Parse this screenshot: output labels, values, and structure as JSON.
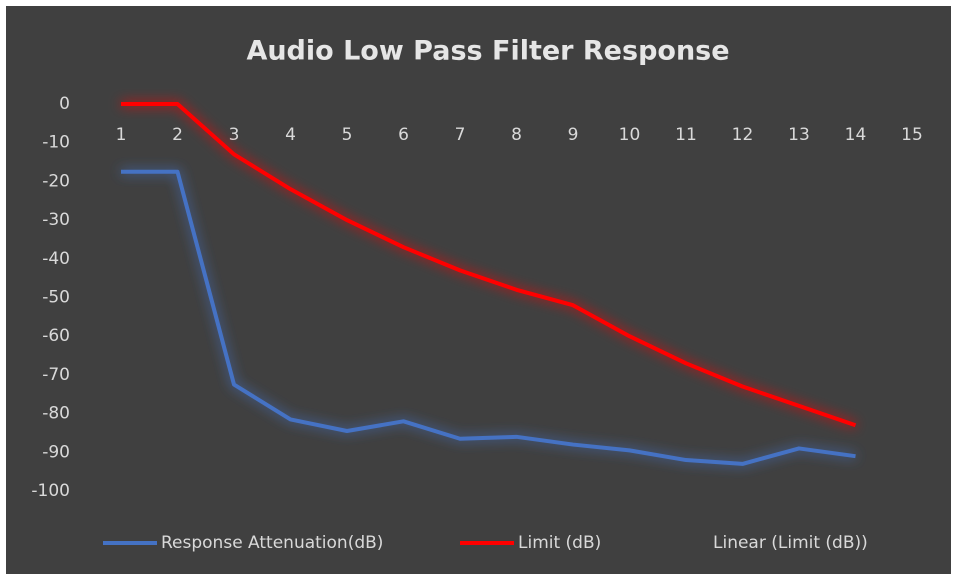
{
  "chart_data": {
    "type": "line",
    "title": "Audio Low Pass Filter Response",
    "categories": [
      "1",
      "2",
      "3",
      "4",
      "5",
      "6",
      "7",
      "8",
      "9",
      "10",
      "11",
      "12",
      "13",
      "14",
      "15"
    ],
    "series": [
      {
        "name": "Response Attenuation(dB)",
        "color": "#4472c4",
        "values": [
          -17.5,
          -17.5,
          -72.5,
          -81.5,
          -84.5,
          -82,
          -86.5,
          -86,
          -88,
          -89.5,
          -92,
          -93,
          -89,
          -91,
          null
        ]
      },
      {
        "name": "Limit (dB)",
        "color": "#ff0000",
        "values": [
          0,
          0,
          -13,
          -22,
          -30,
          -37,
          -43,
          -48,
          -52,
          -60,
          -67,
          -73,
          -78,
          -83,
          null
        ]
      },
      {
        "name": "Linear (Limit (dB))",
        "color": "none",
        "values": [
          null,
          null,
          null,
          null,
          null,
          null,
          null,
          null,
          null,
          null,
          null,
          null,
          null,
          null,
          null
        ]
      }
    ],
    "ylim": [
      -100,
      0
    ],
    "yticks": [
      0,
      -10,
      -20,
      -30,
      -40,
      -50,
      -60,
      -70,
      -80,
      -90,
      -100
    ],
    "grid": false,
    "legend": "bottom"
  }
}
